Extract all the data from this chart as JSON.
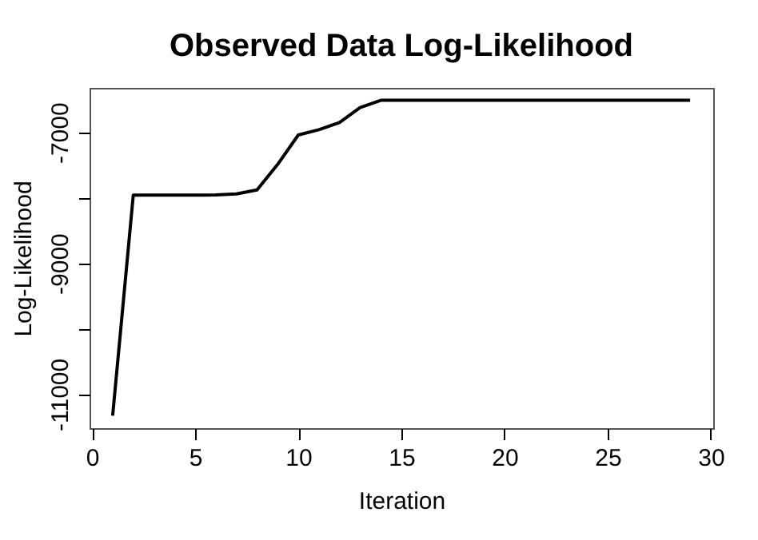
{
  "chart_data": {
    "type": "line",
    "title": "Observed Data Log-Likelihood",
    "xlabel": "Iteration",
    "ylabel": "Log-Likelihood",
    "x": [
      1,
      2,
      3,
      4,
      5,
      6,
      7,
      8,
      9,
      10,
      11,
      12,
      13,
      14,
      15,
      16,
      17,
      18,
      19,
      20,
      21,
      22,
      23,
      24,
      25,
      26,
      27,
      28,
      29
    ],
    "series": [
      {
        "color": "#000000",
        "values": [
          -11330,
          -7960,
          -7960,
          -7960,
          -7960,
          -7955,
          -7940,
          -7880,
          -7490,
          -7040,
          -6960,
          -6850,
          -6620,
          -6510,
          -6510,
          -6510,
          -6510,
          -6510,
          -6510,
          -6510,
          -6510,
          -6510,
          -6510,
          -6510,
          -6510,
          -6510,
          -6510,
          -6510,
          -6510
        ]
      }
    ],
    "xlim": [
      -0.12,
      30.12
    ],
    "xticks": [
      0,
      5,
      10,
      15,
      20,
      25,
      30
    ],
    "ylim": [
      -11520,
      -6320
    ],
    "yticks": [
      -11000,
      {
        "value": -10000,
        "label": null
      },
      -9000,
      {
        "value": -8000,
        "label": null
      },
      -7000
    ],
    "grid": false,
    "legend": false,
    "marker": "none",
    "line_style": "solid"
  }
}
